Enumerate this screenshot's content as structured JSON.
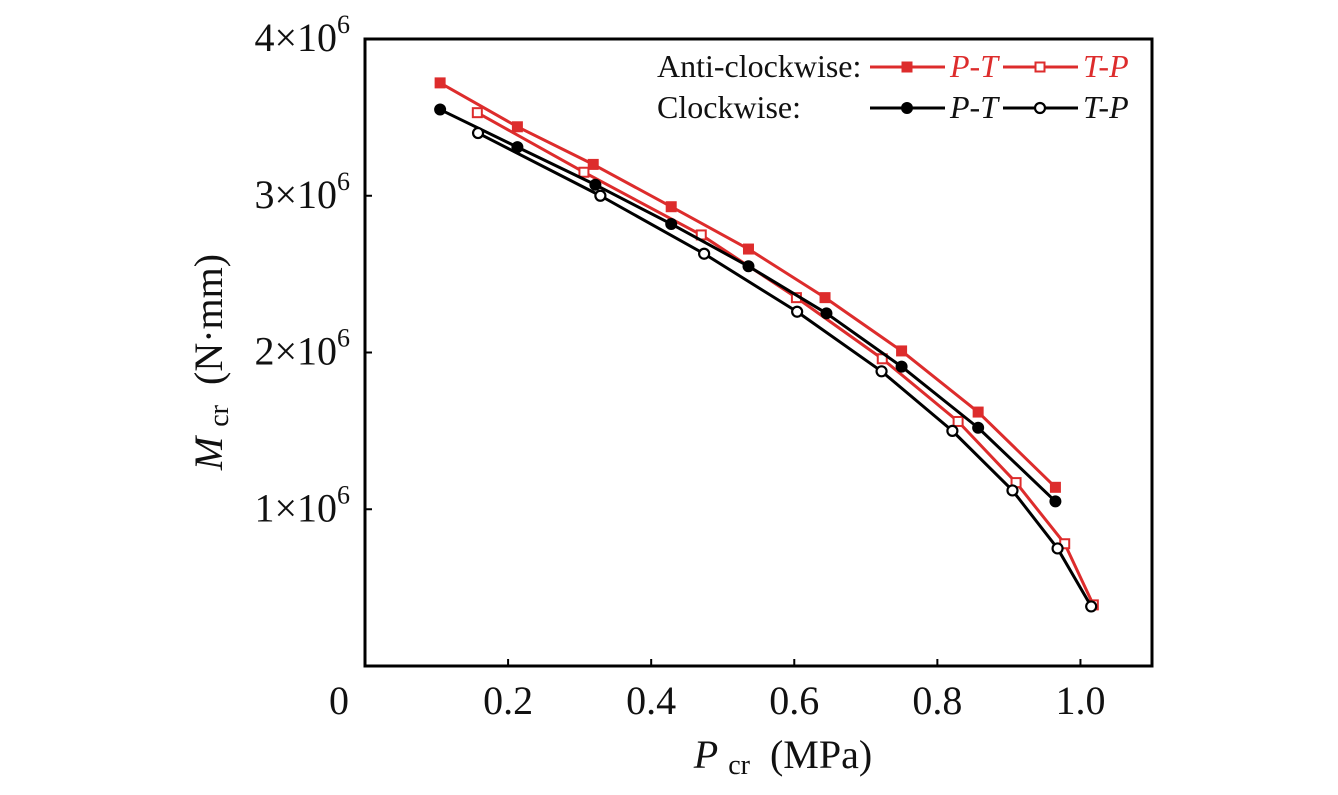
{
  "chart_data": {
    "type": "line",
    "title": "",
    "xlabel": {
      "main": "P",
      "subscript": "cr",
      "unit": "(MPa)"
    },
    "ylabel": {
      "main": "M",
      "subscript": "cr",
      "unit": "(N·mm)"
    },
    "xlim": [
      0,
      1.1
    ],
    "ylim": [
      0,
      4000000
    ],
    "x_ticks": [
      {
        "value": 0.2,
        "label": "0.2"
      },
      {
        "value": 0.4,
        "label": "0.4"
      },
      {
        "value": 0.6,
        "label": "0.6"
      },
      {
        "value": 0.8,
        "label": "0.8"
      },
      {
        "value": 1.0,
        "label": "1.0"
      }
    ],
    "y_ticks": [
      {
        "value": 1000000,
        "label_base": "1×10",
        "label_exp": "6"
      },
      {
        "value": 2000000,
        "label_base": "2×10",
        "label_exp": "6"
      },
      {
        "value": 3000000,
        "label_base": "3×10",
        "label_exp": "6"
      },
      {
        "value": 4000000,
        "label_base": "4×10",
        "label_exp": "6"
      }
    ],
    "origin_label": "0",
    "grid": false,
    "legend": {
      "placement": "top-right",
      "rows": [
        {
          "group_label": "Anti-clockwise:",
          "entries": [
            0,
            1
          ]
        },
        {
          "group_label": "Clockwise:",
          "entries": [
            2,
            3
          ]
        }
      ]
    },
    "series": [
      {
        "name": "P-T",
        "group": "Anti-clockwise",
        "color": "#DD2C2C",
        "marker": "square",
        "filled": true,
        "x": [
          0.105,
          0.213,
          0.319,
          0.428,
          0.536,
          0.643,
          0.75,
          0.857,
          0.965
        ],
        "y": [
          3720000,
          3440000,
          3200000,
          2930000,
          2660000,
          2350000,
          2010000,
          1620000,
          1140000
        ]
      },
      {
        "name": "T-P",
        "group": "Anti-clockwise",
        "color": "#DD2C2C",
        "marker": "square",
        "filled": false,
        "x": [
          0.157,
          0.306,
          0.47,
          0.603,
          0.723,
          0.829,
          0.91,
          0.978,
          1.018
        ],
        "y": [
          3530000,
          3150000,
          2750000,
          2350000,
          1960000,
          1560000,
          1170000,
          780000,
          390000
        ]
      },
      {
        "name": "P-T",
        "group": "Clockwise",
        "color": "#000000",
        "marker": "circle",
        "filled": true,
        "x": [
          0.105,
          0.213,
          0.322,
          0.428,
          0.536,
          0.645,
          0.75,
          0.857,
          0.965
        ],
        "y": [
          3550000,
          3310000,
          3070000,
          2820000,
          2550000,
          2250000,
          1910000,
          1520000,
          1050000
        ]
      },
      {
        "name": "T-P",
        "group": "Clockwise",
        "color": "#000000",
        "marker": "circle",
        "filled": false,
        "x": [
          0.158,
          0.329,
          0.474,
          0.604,
          0.722,
          0.821,
          0.905,
          0.968,
          1.015
        ],
        "y": [
          3400000,
          3000000,
          2630000,
          2260000,
          1880000,
          1500000,
          1120000,
          750000,
          380000
        ]
      }
    ]
  }
}
